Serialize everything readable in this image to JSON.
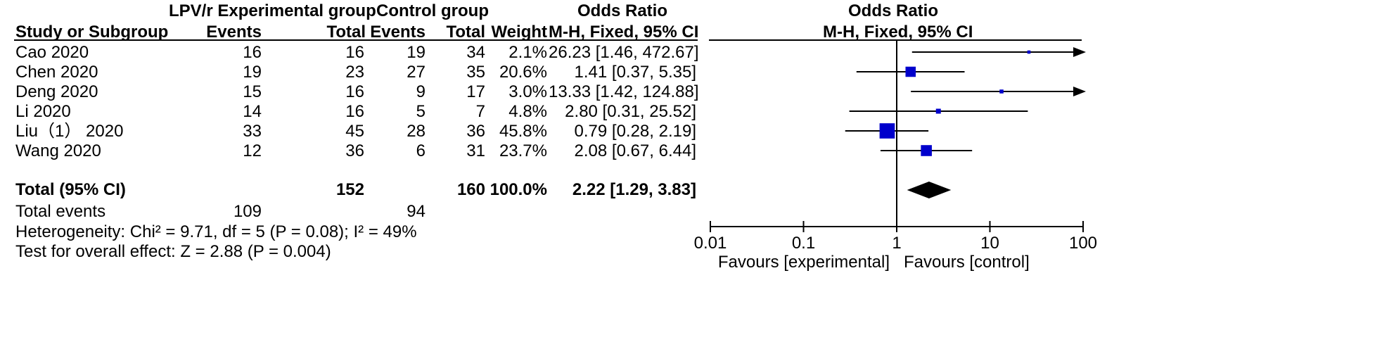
{
  "header": {
    "group_exp": "LPV/r Experimental group",
    "group_ctrl": "Control group",
    "or_col": "Odds Ratio",
    "or_plot": "Odds Ratio",
    "study": "Study or Subgroup",
    "events_exp": "Events",
    "total_exp": "Total",
    "events_ctrl": "Events",
    "total_ctrl": "Total",
    "weight": "Weight",
    "method_col": "M-H, Fixed, 95% CI",
    "method_plot": "M-H, Fixed, 95% CI"
  },
  "studies": [
    {
      "name": "Cao 2020",
      "e_ev": "16",
      "e_tot": "16",
      "c_ev": "19",
      "c_tot": "34",
      "weight": "2.1%",
      "ci": "26.23 [1.46, 472.67]"
    },
    {
      "name": "Chen 2020",
      "e_ev": "19",
      "e_tot": "23",
      "c_ev": "27",
      "c_tot": "35",
      "weight": "20.6%",
      "ci": "1.41 [0.37, 5.35]"
    },
    {
      "name": "Deng 2020",
      "e_ev": "15",
      "e_tot": "16",
      "c_ev": "9",
      "c_tot": "17",
      "weight": "3.0%",
      "ci": "13.33 [1.42, 124.88]"
    },
    {
      "name": "Li 2020",
      "e_ev": "14",
      "e_tot": "16",
      "c_ev": "5",
      "c_tot": "7",
      "weight": "4.8%",
      "ci": "2.80 [0.31, 25.52]"
    },
    {
      "name": "Liu（1） 2020",
      "e_ev": "33",
      "e_tot": "45",
      "c_ev": "28",
      "c_tot": "36",
      "weight": "45.8%",
      "ci": "0.79 [0.28, 2.19]"
    },
    {
      "name": "Wang 2020",
      "e_ev": "12",
      "e_tot": "36",
      "c_ev": "6",
      "c_tot": "31",
      "weight": "23.7%",
      "ci": "2.08 [0.67, 6.44]"
    }
  ],
  "total": {
    "label": "Total (95% CI)",
    "e_tot": "152",
    "c_tot": "160",
    "weight": "100.0%",
    "ci": "2.22 [1.29, 3.83]"
  },
  "events": {
    "label": "Total events",
    "e_ev": "109",
    "c_ev": "94"
  },
  "heterogeneity": "Heterogeneity: Chi² = 9.71, df = 5 (P = 0.08); I² = 49%",
  "overall": "Test for overall effect: Z = 2.88 (P = 0.004)",
  "axis": {
    "ticks": [
      "0.01",
      "0.1",
      "1",
      "10",
      "100"
    ],
    "fav_left": "Favours [experimental]",
    "fav_right": "Favours [control]"
  },
  "chart_data": {
    "type": "forest",
    "scale": "log",
    "xlim": [
      0.01,
      100
    ],
    "ticks": [
      0.01,
      0.1,
      1,
      10,
      100
    ],
    "null_line": 1,
    "marker_color": "#0000cc",
    "diamond_color": "#000000",
    "studies": [
      {
        "name": "Cao 2020",
        "or": 26.23,
        "lo": 1.46,
        "hi": 472.67,
        "weight": 2.1
      },
      {
        "name": "Chen 2020",
        "or": 1.41,
        "lo": 0.37,
        "hi": 5.35,
        "weight": 20.6
      },
      {
        "name": "Deng 2020",
        "or": 13.33,
        "lo": 1.42,
        "hi": 124.88,
        "weight": 3.0
      },
      {
        "name": "Li 2020",
        "or": 2.8,
        "lo": 0.31,
        "hi": 25.52,
        "weight": 4.8
      },
      {
        "name": "Liu（1） 2020",
        "or": 0.79,
        "lo": 0.28,
        "hi": 2.19,
        "weight": 45.8
      },
      {
        "name": "Wang 2020",
        "or": 2.08,
        "lo": 0.67,
        "hi": 6.44,
        "weight": 23.7
      }
    ],
    "pooled": {
      "or": 2.22,
      "lo": 1.29,
      "hi": 3.83
    }
  }
}
